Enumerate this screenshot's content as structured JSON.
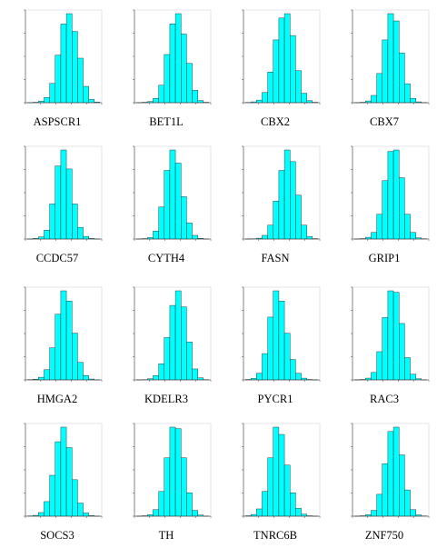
{
  "chart_data": [
    {
      "type": "bar",
      "title": "ASPSCR1",
      "values": [
        1,
        3,
        10,
        35,
        130,
        320,
        530,
        600,
        480,
        300,
        110,
        22,
        4
      ]
    },
    {
      "type": "bar",
      "title": "BET1L",
      "values": [
        1,
        3,
        8,
        30,
        120,
        330,
        540,
        610,
        470,
        270,
        85,
        15,
        3
      ]
    },
    {
      "type": "bar",
      "title": "CBX2",
      "values": [
        2,
        6,
        18,
        70,
        210,
        430,
        580,
        610,
        460,
        220,
        65,
        14,
        3
      ]
    },
    {
      "type": "bar",
      "title": "CBX7",
      "values": [
        1,
        3,
        12,
        50,
        200,
        430,
        610,
        560,
        340,
        130,
        30,
        6,
        1
      ]
    },
    {
      "type": "bar",
      "title": "CCDC57",
      "values": [
        1,
        4,
        15,
        60,
        240,
        500,
        610,
        480,
        240,
        80,
        18,
        4,
        1
      ]
    },
    {
      "type": "bar",
      "title": "CYTH4",
      "values": [
        1,
        3,
        10,
        55,
        220,
        470,
        610,
        520,
        290,
        110,
        25,
        5,
        1
      ]
    },
    {
      "type": "bar",
      "title": "FASN",
      "values": [
        1,
        2,
        6,
        25,
        95,
        260,
        470,
        610,
        530,
        300,
        95,
        18,
        3
      ]
    },
    {
      "type": "bar",
      "title": "GRIP1",
      "values": [
        1,
        3,
        12,
        45,
        170,
        400,
        600,
        610,
        420,
        170,
        45,
        8,
        2
      ]
    },
    {
      "type": "bar",
      "title": "HMGA2",
      "values": [
        2,
        5,
        18,
        70,
        220,
        450,
        610,
        540,
        320,
        120,
        30,
        6,
        1
      ]
    },
    {
      "type": "bar",
      "title": "KDELR3",
      "values": [
        1,
        2,
        8,
        30,
        110,
        290,
        510,
        610,
        500,
        260,
        75,
        14,
        2
      ]
    },
    {
      "type": "bar",
      "title": "PYCR1",
      "values": [
        3,
        10,
        45,
        180,
        430,
        610,
        540,
        320,
        140,
        45,
        12,
        3,
        1
      ]
    },
    {
      "type": "bar",
      "title": "RAC3",
      "values": [
        1,
        3,
        12,
        50,
        190,
        420,
        600,
        590,
        380,
        150,
        38,
        8,
        1
      ]
    },
    {
      "type": "bar",
      "title": "SOCS3",
      "values": [
        2,
        6,
        25,
        100,
        280,
        510,
        610,
        470,
        250,
        90,
        22,
        4,
        1
      ]
    },
    {
      "type": "bar",
      "title": "TH",
      "values": [
        1,
        3,
        10,
        45,
        170,
        400,
        610,
        600,
        400,
        160,
        40,
        8,
        1
      ]
    },
    {
      "type": "bar",
      "title": "TNRC6B",
      "values": [
        3,
        12,
        50,
        170,
        400,
        610,
        560,
        350,
        160,
        55,
        14,
        3,
        1
      ]
    },
    {
      "type": "bar",
      "title": "ZNF750",
      "values": [
        1,
        3,
        10,
        40,
        150,
        360,
        580,
        610,
        420,
        180,
        45,
        9,
        2
      ]
    }
  ],
  "style": {
    "bar_fill": "#00ffff",
    "bar_stroke": "#1a1a1a",
    "axis_color": "#444444"
  }
}
